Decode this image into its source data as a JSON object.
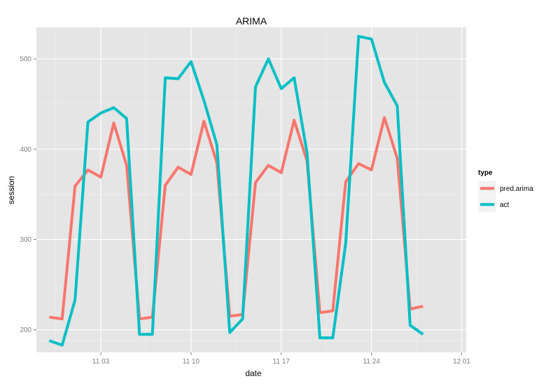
{
  "chart_data": {
    "type": "line",
    "title": "ARIMA",
    "xlabel": "date",
    "ylabel": "session",
    "x_ticks": [
      "11 03",
      "11 10",
      "11 17",
      "11 24",
      "12 01"
    ],
    "x_tick_dates": [
      "2014-11-03",
      "2014-11-10",
      "2014-11-17",
      "2014-11-24",
      "2014-12-01"
    ],
    "y_ticks": [
      200,
      300,
      400,
      500
    ],
    "xlim": [
      "2014-10-29",
      "2014-12-01"
    ],
    "ylim": [
      175,
      535
    ],
    "grid": true,
    "legend": {
      "title": "type",
      "position": "right"
    },
    "x": [
      "2014-10-30",
      "2014-10-31",
      "2014-11-01",
      "2014-11-02",
      "2014-11-03",
      "2014-11-04",
      "2014-11-05",
      "2014-11-06",
      "2014-11-07",
      "2014-11-08",
      "2014-11-09",
      "2014-11-10",
      "2014-11-11",
      "2014-11-12",
      "2014-11-13",
      "2014-11-14",
      "2014-11-15",
      "2014-11-16",
      "2014-11-17",
      "2014-11-18",
      "2014-11-19",
      "2014-11-20",
      "2014-11-21",
      "2014-11-22",
      "2014-11-23",
      "2014-11-24",
      "2014-11-25",
      "2014-11-26",
      "2014-11-27",
      "2014-11-28",
      "2014-11-29",
      "2014-11-30"
    ],
    "series": [
      {
        "name": "pred.arima",
        "color": "#F8766D",
        "values": [
          214,
          212,
          359,
          377,
          369,
          429,
          382,
          212,
          214,
          360,
          380,
          372,
          431,
          385,
          215,
          217,
          363,
          382,
          374,
          432,
          387,
          219,
          221,
          364,
          384,
          377,
          435,
          390,
          223,
          226,
          null,
          null
        ]
      },
      {
        "name": "act",
        "color": "#00BFC4",
        "values": [
          188,
          183,
          233,
          430,
          440,
          446,
          434,
          195,
          195,
          479,
          478,
          497,
          454,
          405,
          197,
          212,
          469,
          500,
          467,
          479,
          396,
          191,
          191,
          296,
          525,
          522,
          474,
          448,
          205,
          195,
          null,
          null
        ]
      }
    ]
  }
}
